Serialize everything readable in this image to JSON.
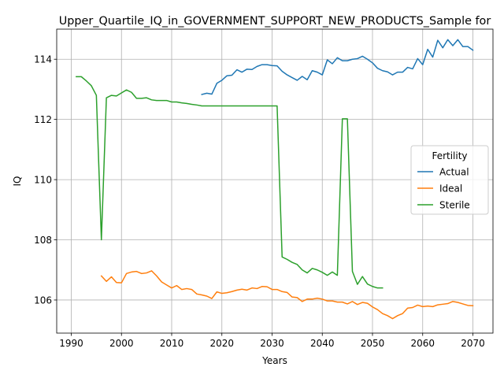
{
  "chart_data": {
    "type": "line",
    "title": "Upper_Quartile_IQ_in_GOVERNMENT_SUPPORT_NEW_PRODUCTS_Sample for",
    "xlabel": "Years",
    "ylabel": "IQ",
    "xlim": [
      1987.1,
      2074.0
    ],
    "ylim": [
      104.9,
      115.0
    ],
    "x_ticks": [
      1990,
      2000,
      2010,
      2020,
      2030,
      2040,
      2050,
      2060,
      2070
    ],
    "y_ticks": [
      106,
      108,
      110,
      112,
      114
    ],
    "grid": true,
    "legend": {
      "title": "Fertility",
      "placement": "center-right"
    },
    "series": [
      {
        "name": "Actual",
        "color": "#1f77b4",
        "x": [
          2016,
          2017,
          2018,
          2019,
          2020,
          2021,
          2022,
          2023,
          2024,
          2025,
          2026,
          2027,
          2028,
          2029,
          2030,
          2031,
          2032,
          2033,
          2034,
          2035,
          2036,
          2037,
          2038,
          2039,
          2040,
          2041,
          2042,
          2043,
          2044,
          2045,
          2046,
          2047,
          2048,
          2049,
          2050,
          2051,
          2052,
          2053,
          2054,
          2055,
          2056,
          2057,
          2058,
          2059,
          2060,
          2061,
          2062,
          2063,
          2064,
          2065,
          2066,
          2067,
          2068,
          2069,
          2070
        ],
        "values": [
          112.83,
          112.87,
          112.84,
          113.2,
          113.3,
          113.45,
          113.47,
          113.65,
          113.57,
          113.67,
          113.66,
          113.76,
          113.82,
          113.82,
          113.79,
          113.78,
          113.6,
          113.48,
          113.39,
          113.3,
          113.43,
          113.32,
          113.62,
          113.57,
          113.48,
          113.98,
          113.85,
          114.05,
          113.95,
          113.95,
          114.0,
          114.02,
          114.1,
          114.0,
          113.88,
          113.7,
          113.62,
          113.58,
          113.48,
          113.57,
          113.57,
          113.73,
          113.68,
          114.02,
          113.82,
          114.33,
          114.07,
          114.63,
          114.38,
          114.65,
          114.45,
          114.65,
          114.42,
          114.42,
          114.3
        ]
      },
      {
        "name": "Ideal",
        "color": "#ff7f0e",
        "x": [
          1996,
          1997,
          1998,
          1999,
          2000,
          2001,
          2002,
          2003,
          2004,
          2005,
          2006,
          2007,
          2008,
          2009,
          2010,
          2011,
          2012,
          2013,
          2014,
          2015,
          2016,
          2017,
          2018,
          2019,
          2020,
          2021,
          2022,
          2023,
          2024,
          2025,
          2026,
          2027,
          2028,
          2029,
          2030,
          2031,
          2032,
          2033,
          2034,
          2035,
          2036,
          2037,
          2038,
          2039,
          2040,
          2041,
          2042,
          2043,
          2044,
          2045,
          2046,
          2047,
          2048,
          2049,
          2050,
          2051,
          2052,
          2053,
          2054,
          2055,
          2056,
          2057,
          2058,
          2059,
          2060,
          2061,
          2062,
          2063,
          2064,
          2065,
          2066,
          2067,
          2068,
          2069,
          2070
        ],
        "values": [
          106.8,
          106.62,
          106.77,
          106.58,
          106.57,
          106.88,
          106.93,
          106.95,
          106.88,
          106.9,
          106.97,
          106.8,
          106.6,
          106.5,
          106.4,
          106.48,
          106.35,
          106.38,
          106.35,
          106.2,
          106.17,
          106.13,
          106.05,
          106.27,
          106.22,
          106.24,
          106.28,
          106.33,
          106.36,
          106.33,
          106.4,
          106.38,
          106.45,
          106.44,
          106.35,
          106.35,
          106.28,
          106.25,
          106.1,
          106.08,
          105.95,
          106.03,
          106.03,
          106.06,
          106.03,
          105.97,
          105.97,
          105.93,
          105.93,
          105.87,
          105.95,
          105.85,
          105.92,
          105.89,
          105.77,
          105.68,
          105.55,
          105.48,
          105.38,
          105.48,
          105.55,
          105.73,
          105.75,
          105.83,
          105.78,
          105.8,
          105.78,
          105.84,
          105.86,
          105.88,
          105.95,
          105.92,
          105.87,
          105.82,
          105.81
        ]
      },
      {
        "name": "Sterile",
        "color": "#2ca02c",
        "x": [
          1991,
          1992,
          1993,
          1994,
          1995,
          1996,
          1997,
          1998,
          1999,
          2000,
          2001,
          2002,
          2003,
          2004,
          2005,
          2006,
          2007,
          2008,
          2009,
          2010,
          2011,
          2012,
          2013,
          2014,
          2015,
          2016,
          2017,
          2018,
          2019,
          2020,
          2021,
          2022,
          2023,
          2024,
          2025,
          2026,
          2027,
          2028,
          2029,
          2030,
          2031,
          2032,
          2033,
          2034,
          2035,
          2036,
          2037,
          2038,
          2039,
          2040,
          2041,
          2042,
          2043,
          2044,
          2045,
          2046,
          2047,
          2048,
          2049,
          2050,
          2051,
          2052
        ],
        "values": [
          113.42,
          113.42,
          113.28,
          113.12,
          112.8,
          108.0,
          112.72,
          112.8,
          112.78,
          112.88,
          112.98,
          112.9,
          112.7,
          112.7,
          112.72,
          112.65,
          112.63,
          112.63,
          112.63,
          112.58,
          112.58,
          112.55,
          112.53,
          112.5,
          112.48,
          112.45,
          112.45,
          112.45,
          112.45,
          112.45,
          112.45,
          112.45,
          112.45,
          112.45,
          112.45,
          112.45,
          112.45,
          112.45,
          112.45,
          112.45,
          112.45,
          107.43,
          107.35,
          107.25,
          107.18,
          107.0,
          106.9,
          107.05,
          107.0,
          106.92,
          106.82,
          106.93,
          106.82,
          112.02,
          112.02,
          106.95,
          106.52,
          106.78,
          106.53,
          106.45,
          106.4,
          106.4
        ]
      }
    ]
  }
}
